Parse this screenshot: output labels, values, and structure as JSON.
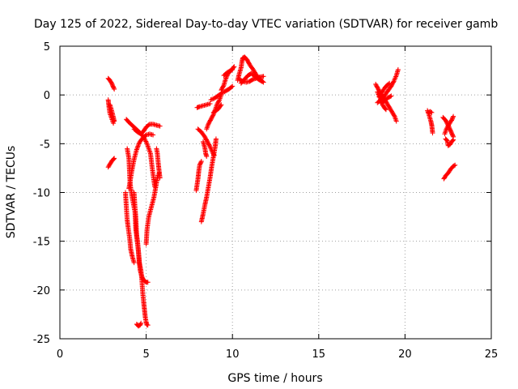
{
  "chart_data": {
    "type": "scatter",
    "title": "Day 125 of 2022, Sidereal Day-to-day VTEC variation (SDTVAR) for receiver gamb",
    "xlabel": "GPS time / hours",
    "ylabel": "SDTVAR / TECUs",
    "xlim": [
      0,
      25
    ],
    "ylim": [
      -25,
      5
    ],
    "xticks": [
      0,
      5,
      10,
      15,
      20,
      25
    ],
    "yticks": [
      5,
      0,
      -5,
      -10,
      -15,
      -20,
      -25
    ],
    "grid": true,
    "marker": "+",
    "color": "#ff0000",
    "series": [
      {
        "name": "SDTVAR",
        "tracks": [
          [
            [
              2.8,
              1.7
            ],
            [
              2.9,
              1.5
            ],
            [
              3.0,
              1.2
            ],
            [
              3.1,
              0.8
            ],
            [
              3.15,
              0.6
            ]
          ],
          [
            [
              2.8,
              -0.5
            ],
            [
              2.85,
              -1.3
            ],
            [
              2.9,
              -1.9
            ],
            [
              3.0,
              -2.4
            ],
            [
              3.1,
              -2.9
            ]
          ],
          [
            [
              2.9,
              -1.0
            ],
            [
              3.0,
              -1.6
            ],
            [
              3.1,
              -2.3
            ],
            [
              3.15,
              -2.7
            ]
          ],
          [
            [
              2.8,
              -7.4
            ],
            [
              2.9,
              -7.1
            ],
            [
              3.0,
              -6.8
            ],
            [
              3.1,
              -6.6
            ],
            [
              3.15,
              -6.5
            ]
          ],
          [
            [
              3.8,
              -10.0
            ],
            [
              3.85,
              -11.5
            ],
            [
              3.9,
              -12.8
            ],
            [
              3.95,
              -13.5
            ],
            [
              4.05,
              -14.8
            ],
            [
              4.1,
              -15.8
            ],
            [
              4.2,
              -16.6
            ],
            [
              4.3,
              -17.2
            ]
          ],
          [
            [
              3.85,
              -2.5
            ],
            [
              4.0,
              -2.8
            ],
            [
              4.3,
              -3.3
            ],
            [
              4.6,
              -3.8
            ],
            [
              4.85,
              -4.3
            ],
            [
              5.05,
              -5.0
            ],
            [
              5.25,
              -6.0
            ],
            [
              5.35,
              -7.5
            ],
            [
              5.45,
              -8.8
            ],
            [
              5.5,
              -9.4
            ]
          ],
          [
            [
              3.9,
              -5.5
            ],
            [
              4.0,
              -6.5
            ],
            [
              4.05,
              -8.5
            ],
            [
              4.1,
              -9.5
            ],
            [
              4.2,
              -10.6
            ],
            [
              4.35,
              -12.0
            ],
            [
              4.4,
              -13.8
            ],
            [
              4.5,
              -15.0
            ],
            [
              4.55,
              -16.0
            ],
            [
              4.6,
              -17.0
            ],
            [
              4.65,
              -18.0
            ],
            [
              4.75,
              -18.6
            ],
            [
              4.85,
              -19.0
            ],
            [
              5.0,
              -19.2
            ],
            [
              5.1,
              -19.2
            ]
          ],
          [
            [
              4.0,
              -9.6
            ],
            [
              4.1,
              -8.5
            ],
            [
              4.2,
              -7.5
            ],
            [
              4.3,
              -6.6
            ],
            [
              4.45,
              -5.6
            ],
            [
              4.6,
              -4.9
            ],
            [
              4.8,
              -4.4
            ],
            [
              5.0,
              -4.1
            ],
            [
              5.2,
              -4.0
            ],
            [
              5.4,
              -4.1
            ]
          ],
          [
            [
              4.3,
              -3.5
            ],
            [
              4.5,
              -3.8
            ],
            [
              4.7,
              -4.0
            ],
            [
              4.85,
              -3.7
            ],
            [
              5.0,
              -3.3
            ],
            [
              5.2,
              -3.0
            ],
            [
              5.4,
              -3.0
            ],
            [
              5.6,
              -3.1
            ],
            [
              5.8,
              -3.2
            ]
          ],
          [
            [
              4.3,
              -10.0
            ],
            [
              4.35,
              -11.5
            ],
            [
              4.4,
              -12.5
            ],
            [
              4.45,
              -14.5
            ],
            [
              4.55,
              -16.0
            ],
            [
              4.6,
              -17.2
            ],
            [
              4.7,
              -18.0
            ],
            [
              4.75,
              -19.0
            ],
            [
              4.8,
              -20.3
            ],
            [
              4.85,
              -21.2
            ],
            [
              4.9,
              -22.0
            ],
            [
              4.95,
              -22.8
            ],
            [
              5.0,
              -23.3
            ],
            [
              5.05,
              -23.6
            ],
            [
              5.1,
              -23.6
            ]
          ],
          [
            [
              4.45,
              -23.5
            ],
            [
              4.55,
              -23.7
            ],
            [
              4.65,
              -23.6
            ],
            [
              4.7,
              -23.4
            ]
          ],
          [
            [
              5.0,
              -15.3
            ],
            [
              5.05,
              -13.8
            ],
            [
              5.15,
              -12.5
            ],
            [
              5.3,
              -11.5
            ],
            [
              5.45,
              -10.5
            ],
            [
              5.55,
              -9.5
            ],
            [
              5.65,
              -8.5
            ],
            [
              5.75,
              -8.0
            ]
          ],
          [
            [
              5.6,
              -5.5
            ],
            [
              5.65,
              -6.0
            ],
            [
              5.7,
              -7.0
            ],
            [
              5.75,
              -7.8
            ],
            [
              5.8,
              -8.5
            ]
          ],
          [
            [
              7.9,
              -9.8
            ],
            [
              8.0,
              -8.6
            ],
            [
              8.05,
              -7.8
            ],
            [
              8.1,
              -7.2
            ],
            [
              8.2,
              -6.8
            ]
          ],
          [
            [
              7.95,
              -1.3
            ],
            [
              8.1,
              -1.2
            ],
            [
              8.3,
              -1.1
            ],
            [
              8.5,
              -1.0
            ],
            [
              8.7,
              -0.9
            ]
          ],
          [
            [
              8.0,
              -3.5
            ],
            [
              8.2,
              -3.8
            ],
            [
              8.4,
              -4.3
            ],
            [
              8.55,
              -4.8
            ],
            [
              8.7,
              -5.3
            ],
            [
              8.85,
              -5.9
            ],
            [
              8.95,
              -6.2
            ]
          ],
          [
            [
              8.2,
              -13.0
            ],
            [
              8.3,
              -12.2
            ],
            [
              8.4,
              -11.3
            ],
            [
              8.5,
              -10.5
            ],
            [
              8.6,
              -9.5
            ],
            [
              8.7,
              -8.5
            ],
            [
              8.8,
              -7.3
            ],
            [
              8.9,
              -6.3
            ],
            [
              9.0,
              -5.3
            ],
            [
              9.05,
              -4.5
            ]
          ],
          [
            [
              8.3,
              -4.8
            ],
            [
              8.4,
              -5.4
            ],
            [
              8.45,
              -6.0
            ],
            [
              8.5,
              -6.3
            ]
          ],
          [
            [
              8.5,
              -3.5
            ],
            [
              8.6,
              -3.0
            ],
            [
              8.75,
              -2.5
            ],
            [
              8.9,
              -2.0
            ],
            [
              9.0,
              -1.5
            ],
            [
              9.1,
              -1.0
            ],
            [
              9.25,
              -0.5
            ],
            [
              9.35,
              0.0
            ]
          ],
          [
            [
              8.75,
              -0.5
            ],
            [
              9.0,
              -0.3
            ],
            [
              9.3,
              0.1
            ],
            [
              9.6,
              0.4
            ],
            [
              9.8,
              0.6
            ],
            [
              10.0,
              0.9
            ]
          ],
          [
            [
              8.9,
              -1.8
            ],
            [
              9.05,
              -1.6
            ],
            [
              9.2,
              -1.4
            ],
            [
              9.35,
              -1.0
            ]
          ],
          [
            [
              9.35,
              0.5
            ],
            [
              9.5,
              1.0
            ],
            [
              9.6,
              1.6
            ],
            [
              9.75,
              2.2
            ],
            [
              9.95,
              2.6
            ],
            [
              10.1,
              2.9
            ]
          ],
          [
            [
              9.5,
              2.0
            ],
            [
              9.7,
              2.3
            ],
            [
              9.9,
              2.5
            ],
            [
              10.0,
              2.6
            ]
          ],
          [
            [
              10.3,
              1.5
            ],
            [
              10.4,
              2.2
            ],
            [
              10.5,
              2.8
            ],
            [
              10.55,
              3.4
            ],
            [
              10.6,
              3.8
            ],
            [
              10.7,
              3.9
            ],
            [
              10.85,
              3.6
            ],
            [
              11.0,
              3.1
            ],
            [
              11.2,
              2.6
            ],
            [
              11.4,
              2.0
            ],
            [
              11.6,
              1.6
            ],
            [
              11.8,
              1.3
            ]
          ],
          [
            [
              10.5,
              1.2
            ],
            [
              10.7,
              1.6
            ],
            [
              10.9,
              2.0
            ],
            [
              11.1,
              2.2
            ],
            [
              11.3,
              1.9
            ],
            [
              11.5,
              1.6
            ],
            [
              11.7,
              1.4
            ]
          ],
          [
            [
              10.4,
              1.6
            ],
            [
              10.6,
              1.4
            ],
            [
              10.8,
              1.3
            ],
            [
              11.0,
              1.4
            ],
            [
              11.2,
              1.6
            ],
            [
              11.5,
              1.8
            ],
            [
              11.8,
              1.9
            ]
          ],
          [
            [
              18.3,
              1.1
            ],
            [
              18.45,
              0.6
            ],
            [
              18.6,
              0.1
            ],
            [
              18.8,
              -0.4
            ],
            [
              19.0,
              -1.0
            ],
            [
              19.2,
              -1.6
            ],
            [
              19.4,
              -2.2
            ],
            [
              19.5,
              -2.7
            ]
          ],
          [
            [
              18.4,
              -0.8
            ],
            [
              18.6,
              -0.5
            ],
            [
              18.8,
              -0.1
            ],
            [
              19.0,
              0.4
            ],
            [
              19.2,
              0.9
            ],
            [
              19.35,
              1.4
            ],
            [
              19.5,
              2.0
            ],
            [
              19.6,
              2.6
            ]
          ],
          [
            [
              18.4,
              0.3
            ],
            [
              18.55,
              -0.3
            ],
            [
              18.7,
              -1.0
            ],
            [
              18.8,
              -1.3
            ],
            [
              18.9,
              -1.5
            ]
          ],
          [
            [
              18.5,
              -0.2
            ],
            [
              18.7,
              0.4
            ],
            [
              18.9,
              0.9
            ],
            [
              19.1,
              1.2
            ]
          ],
          [
            [
              18.6,
              -0.8
            ],
            [
              18.8,
              -0.6
            ],
            [
              19.0,
              -0.3
            ],
            [
              19.2,
              -0.1
            ]
          ],
          [
            [
              21.3,
              -1.6
            ],
            [
              21.4,
              -2.1
            ],
            [
              21.5,
              -2.7
            ],
            [
              21.55,
              -3.1
            ],
            [
              21.6,
              -3.9
            ]
          ],
          [
            [
              21.35,
              -1.8
            ],
            [
              21.45,
              -1.7
            ],
            [
              21.55,
              -1.8
            ]
          ],
          [
            [
              22.2,
              -2.3
            ],
            [
              22.35,
              -2.6
            ],
            [
              22.5,
              -3.1
            ],
            [
              22.6,
              -3.5
            ],
            [
              22.7,
              -3.9
            ],
            [
              22.8,
              -4.3
            ]
          ],
          [
            [
              22.3,
              -4.0
            ],
            [
              22.4,
              -3.5
            ],
            [
              22.55,
              -3.0
            ],
            [
              22.7,
              -2.6
            ],
            [
              22.8,
              -2.2
            ]
          ],
          [
            [
              22.35,
              -4.5
            ],
            [
              22.45,
              -4.7
            ],
            [
              22.5,
              -5.2
            ],
            [
              22.6,
              -5.1
            ],
            [
              22.7,
              -4.8
            ],
            [
              22.8,
              -4.6
            ]
          ],
          [
            [
              22.25,
              -8.6
            ],
            [
              22.35,
              -8.3
            ],
            [
              22.5,
              -8.0
            ],
            [
              22.65,
              -7.6
            ],
            [
              22.8,
              -7.3
            ],
            [
              22.9,
              -7.2
            ]
          ]
        ]
      }
    ]
  }
}
